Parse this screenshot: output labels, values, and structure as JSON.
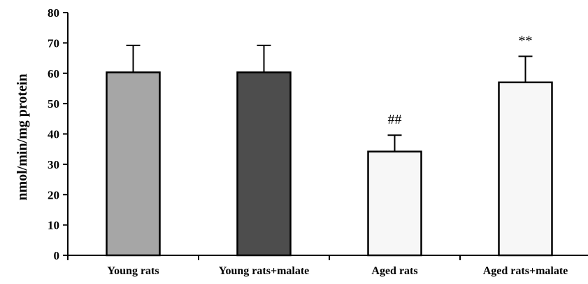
{
  "chart_data": {
    "type": "bar",
    "title": "",
    "xlabel": "",
    "ylabel": "nmol/min/mg protein",
    "ylim": [
      0,
      80
    ],
    "yticks": [
      0,
      10,
      20,
      30,
      40,
      50,
      60,
      70,
      80
    ],
    "categories": [
      "Young rats",
      "Young rats+malate",
      "Aged rats",
      "Aged rats+malate"
    ],
    "values": [
      60.3,
      60.3,
      34.2,
      57.0
    ],
    "errors": [
      8.9,
      8.9,
      5.4,
      8.6
    ],
    "bar_colors": [
      "#a6a6a6",
      "#4d4d4d",
      "#f7f7f7",
      "#f7f7f7"
    ],
    "annotations": [
      "",
      "",
      "##",
      "**"
    ],
    "grid": false,
    "legend": "none"
  }
}
